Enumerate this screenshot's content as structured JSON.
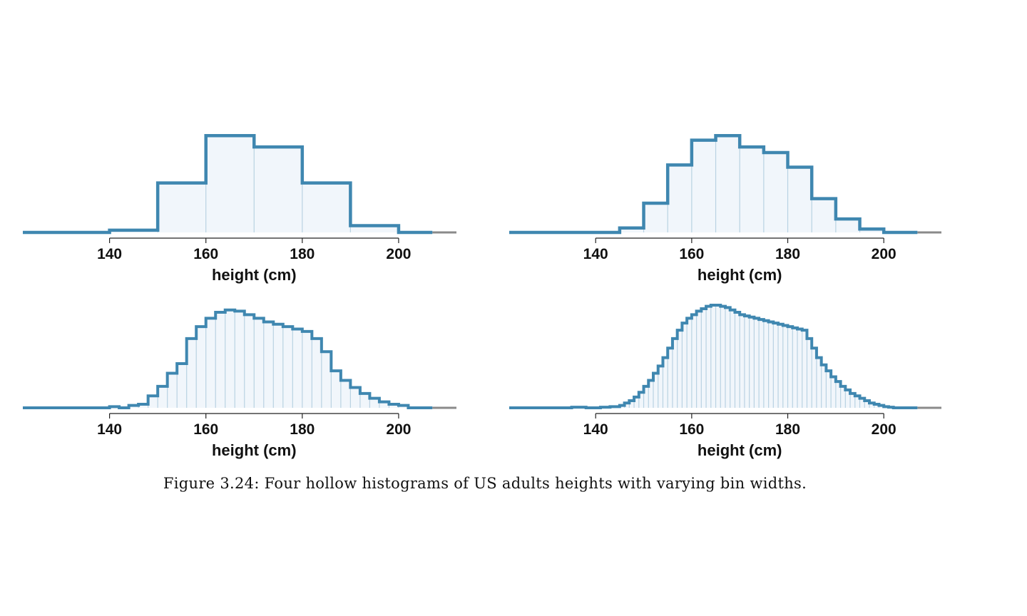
{
  "caption": "Figure 3.24: Four hollow histograms of US adults heights with varying bin widths.",
  "colors": {
    "outline": "#3f87b0",
    "fill": "#f1f6fb",
    "inner_lines": "#b9d2e2",
    "baseline_gray": "#8a8a8a"
  },
  "chart_data": [
    {
      "type": "bar",
      "style": "hollow histogram",
      "xlabel": "height (cm)",
      "xticks": [
        140,
        160,
        180,
        200
      ],
      "xlim": [
        122,
        212
      ],
      "bin_width": 10,
      "bins_start": 140,
      "values": [
        2,
        44,
        86,
        76,
        44,
        6
      ],
      "ylim": [
        0,
        90
      ]
    },
    {
      "type": "bar",
      "style": "hollow histogram",
      "xlabel": "height (cm)",
      "xticks": [
        140,
        160,
        180,
        200
      ],
      "xlim": [
        122,
        212
      ],
      "bin_width": 5,
      "bins_start": 145,
      "values": [
        4,
        26,
        60,
        82,
        86,
        76,
        71,
        58,
        30,
        12,
        3
      ],
      "ylim": [
        0,
        90
      ]
    },
    {
      "type": "bar",
      "style": "hollow histogram",
      "xlabel": "height (cm)",
      "xticks": [
        140,
        160,
        180,
        200
      ],
      "xlim": [
        122,
        212
      ],
      "bin_width": 2,
      "bins_start": 130,
      "values": [
        0,
        0,
        0,
        0,
        0,
        1,
        0,
        2,
        3,
        10,
        18,
        29,
        37,
        58,
        68,
        75,
        80,
        82,
        81,
        78,
        75,
        72,
        70,
        68,
        66,
        64,
        58,
        47,
        31,
        23,
        17,
        12,
        8,
        5,
        3,
        2
      ],
      "ylim": [
        0,
        86
      ]
    },
    {
      "type": "bar",
      "style": "hollow histogram",
      "xlabel": "height (cm)",
      "xticks": [
        140,
        160,
        180,
        200
      ],
      "xlim": [
        122,
        212
      ],
      "bin_width": 1,
      "bins_start": 130,
      "values": [
        0,
        0,
        0,
        0,
        0,
        0.5,
        0.5,
        0.5,
        0,
        0,
        0,
        0.5,
        0.5,
        1,
        1,
        2,
        4,
        6,
        9,
        13,
        18,
        23,
        29,
        35,
        42,
        50,
        58,
        65,
        71,
        75,
        78,
        81,
        83,
        85,
        86,
        86,
        85,
        84,
        82,
        80,
        78,
        77,
        76,
        75,
        74,
        73,
        72,
        71,
        70,
        69,
        68,
        67,
        66,
        65,
        58,
        50,
        42,
        36,
        31,
        26,
        22,
        18,
        15,
        12,
        10,
        8,
        6,
        4,
        3,
        2,
        1,
        0.5
      ],
      "ylim": [
        0,
        86
      ]
    }
  ]
}
